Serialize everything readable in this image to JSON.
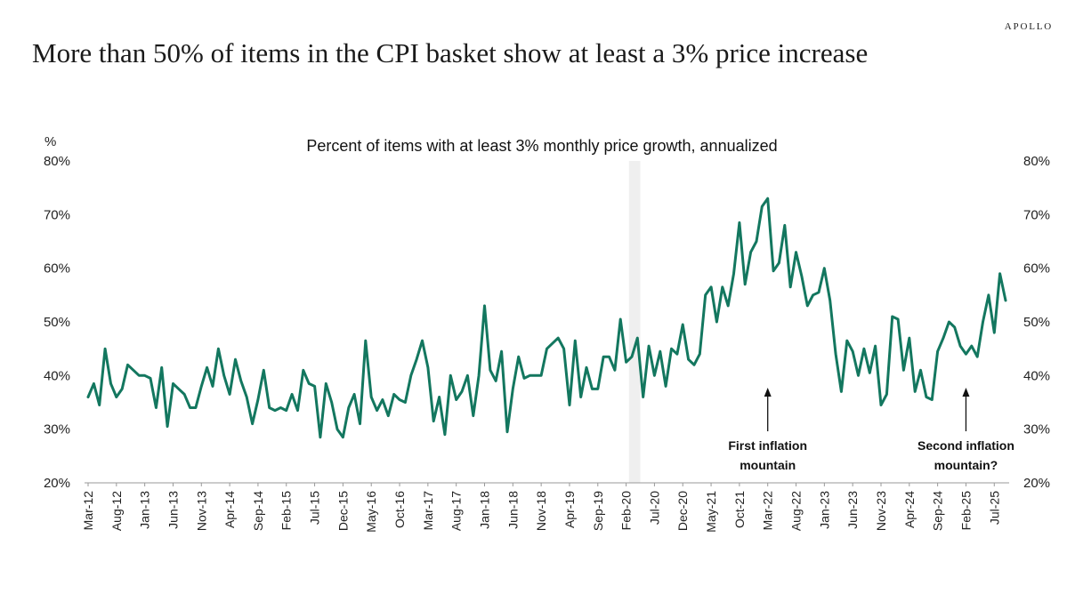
{
  "brand": "APOLLO",
  "title": "More than 50% of items in the CPI basket show at least a 3% price increase",
  "chart_data": {
    "type": "line",
    "subtitle": "Percent of items with at least 3% monthly price growth, annualized",
    "ylabel": "%",
    "ylim": [
      20,
      80
    ],
    "y_ticks": [
      "20%",
      "30%",
      "40%",
      "50%",
      "60%",
      "70%",
      "80%"
    ],
    "y_tick_values": [
      20,
      30,
      40,
      50,
      60,
      70,
      80
    ],
    "right_axis_ticks": [
      "20%",
      "30%",
      "40%",
      "50%",
      "60%",
      "70%",
      "80%"
    ],
    "x_tick_labels": [
      "Mar-12",
      "Aug-12",
      "Jan-13",
      "Jun-13",
      "Nov-13",
      "Apr-14",
      "Sep-14",
      "Feb-15",
      "Jul-15",
      "Dec-15",
      "May-16",
      "Oct-16",
      "Mar-17",
      "Aug-17",
      "Jan-18",
      "Jun-18",
      "Nov-18",
      "Apr-19",
      "Sep-19",
      "Feb-20",
      "Jul-20",
      "Dec-20",
      "May-21",
      "Oct-21",
      "Mar-22",
      "Aug-22",
      "Jan-23",
      "Jun-23",
      "Nov-23",
      "Apr-24",
      "Sep-24",
      "Feb-25",
      "Jul-25"
    ],
    "x_start": "Mar-12",
    "shaded_period": {
      "start": "Mar-20",
      "end": "Apr-20"
    },
    "grid": false,
    "line_color": "#13775f",
    "shade_color": "#efefef",
    "series": [
      {
        "values": [
          36,
          38.5,
          34.5,
          45,
          38.5,
          36,
          37.5,
          42,
          41,
          40,
          40,
          39.5,
          34,
          41.5,
          30.5,
          38.5,
          37.5,
          36.5,
          34,
          34,
          38,
          41.5,
          38,
          45,
          40,
          36.5,
          43,
          39,
          36,
          31,
          35.5,
          41,
          34,
          33.5,
          34,
          33.5,
          36.5,
          33.5,
          41,
          38.5,
          38,
          28.5,
          38.5,
          35,
          30,
          28.5,
          34,
          36.5,
          31,
          46.5,
          36,
          33.5,
          35.5,
          32.5,
          36.5,
          35.5,
          35,
          40,
          43,
          46.5,
          41.5,
          31.5,
          36,
          29,
          40,
          35.5,
          37,
          40,
          32.5,
          40,
          53,
          41,
          39,
          44.5,
          29.5,
          37.5,
          43.5,
          39.5,
          40,
          40,
          40,
          45,
          46,
          47,
          45,
          34.5,
          46.5,
          36,
          41.5,
          37.5,
          37.5,
          43.5,
          43.5,
          41,
          50.5,
          42.5,
          43.5,
          47,
          36,
          45.5,
          40,
          44.5,
          38,
          45,
          44,
          49.5,
          43,
          42,
          44,
          55,
          56.5,
          50,
          56.5,
          53,
          59,
          68.5,
          57,
          63,
          65,
          71.5,
          73,
          59.5,
          61,
          68,
          56.5,
          63,
          58.5,
          53,
          55,
          55.5,
          60,
          54,
          44,
          37,
          46.5,
          44.5,
          40,
          45,
          40.5,
          45.5,
          34.5,
          36.5,
          51,
          50.5,
          41,
          47,
          37,
          41,
          36,
          35.5,
          44.5,
          47,
          50,
          49,
          45.5,
          44,
          45.5,
          43.5,
          50,
          55,
          48,
          59,
          54
        ]
      }
    ],
    "annotations": [
      {
        "lines": [
          "First inflation",
          "mountain"
        ],
        "x_label": "Mar-22"
      },
      {
        "lines": [
          "Second inflation",
          "mountain?"
        ],
        "x_label": "Feb-25"
      }
    ]
  }
}
